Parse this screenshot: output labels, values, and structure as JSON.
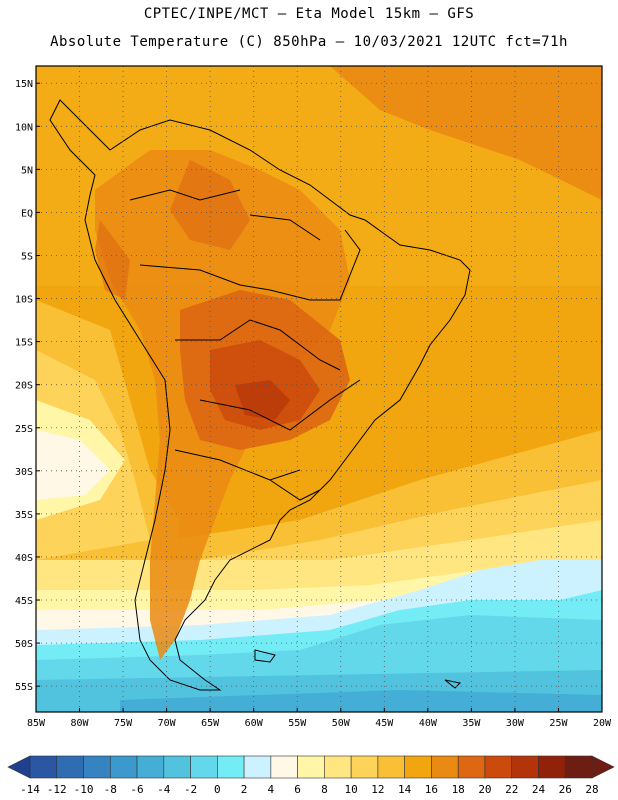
{
  "header": {
    "title_line1": "CPTEC/INPE/MCT –  Eta Model 15km – GFS",
    "title_line2": "Absolute Temperature (C) 850hPa – 10/03/2021 12UTC fct=71h"
  },
  "map": {
    "lat_labels": [
      "15N",
      "10N",
      "5N",
      "EQ",
      "5S",
      "10S",
      "15S",
      "20S",
      "25S",
      "30S",
      "35S",
      "40S",
      "45S",
      "50S",
      "55S"
    ],
    "lon_labels": [
      "85W",
      "80W",
      "75W",
      "70W",
      "65W",
      "60W",
      "55W",
      "50W",
      "45W",
      "40W",
      "35W",
      "30W",
      "25W",
      "20W"
    ],
    "lon_range": [
      -85,
      -20
    ],
    "lat_range": [
      -58,
      17
    ]
  },
  "colorbar": {
    "ticks": [
      "-14",
      "-12",
      "-10",
      "-8",
      "-6",
      "-4",
      "-2",
      "0",
      "2",
      "4",
      "6",
      "8",
      "10",
      "12",
      "14",
      "16",
      "18",
      "20",
      "22",
      "24",
      "26",
      "28"
    ],
    "colors": [
      "#1f3f8f",
      "#2a56a3",
      "#2f6db3",
      "#3583c1",
      "#3b99cd",
      "#44aed6",
      "#52c3df",
      "#62d8ea",
      "#73ecf6",
      "#cdf2ff",
      "#fff8e6",
      "#fff6a8",
      "#ffe680",
      "#fdd35a",
      "#f9c036",
      "#f1a60f",
      "#ea8a12",
      "#dd6712",
      "#cc4a0c",
      "#b3340a",
      "#92210a",
      "#6e1d12"
    ]
  }
}
